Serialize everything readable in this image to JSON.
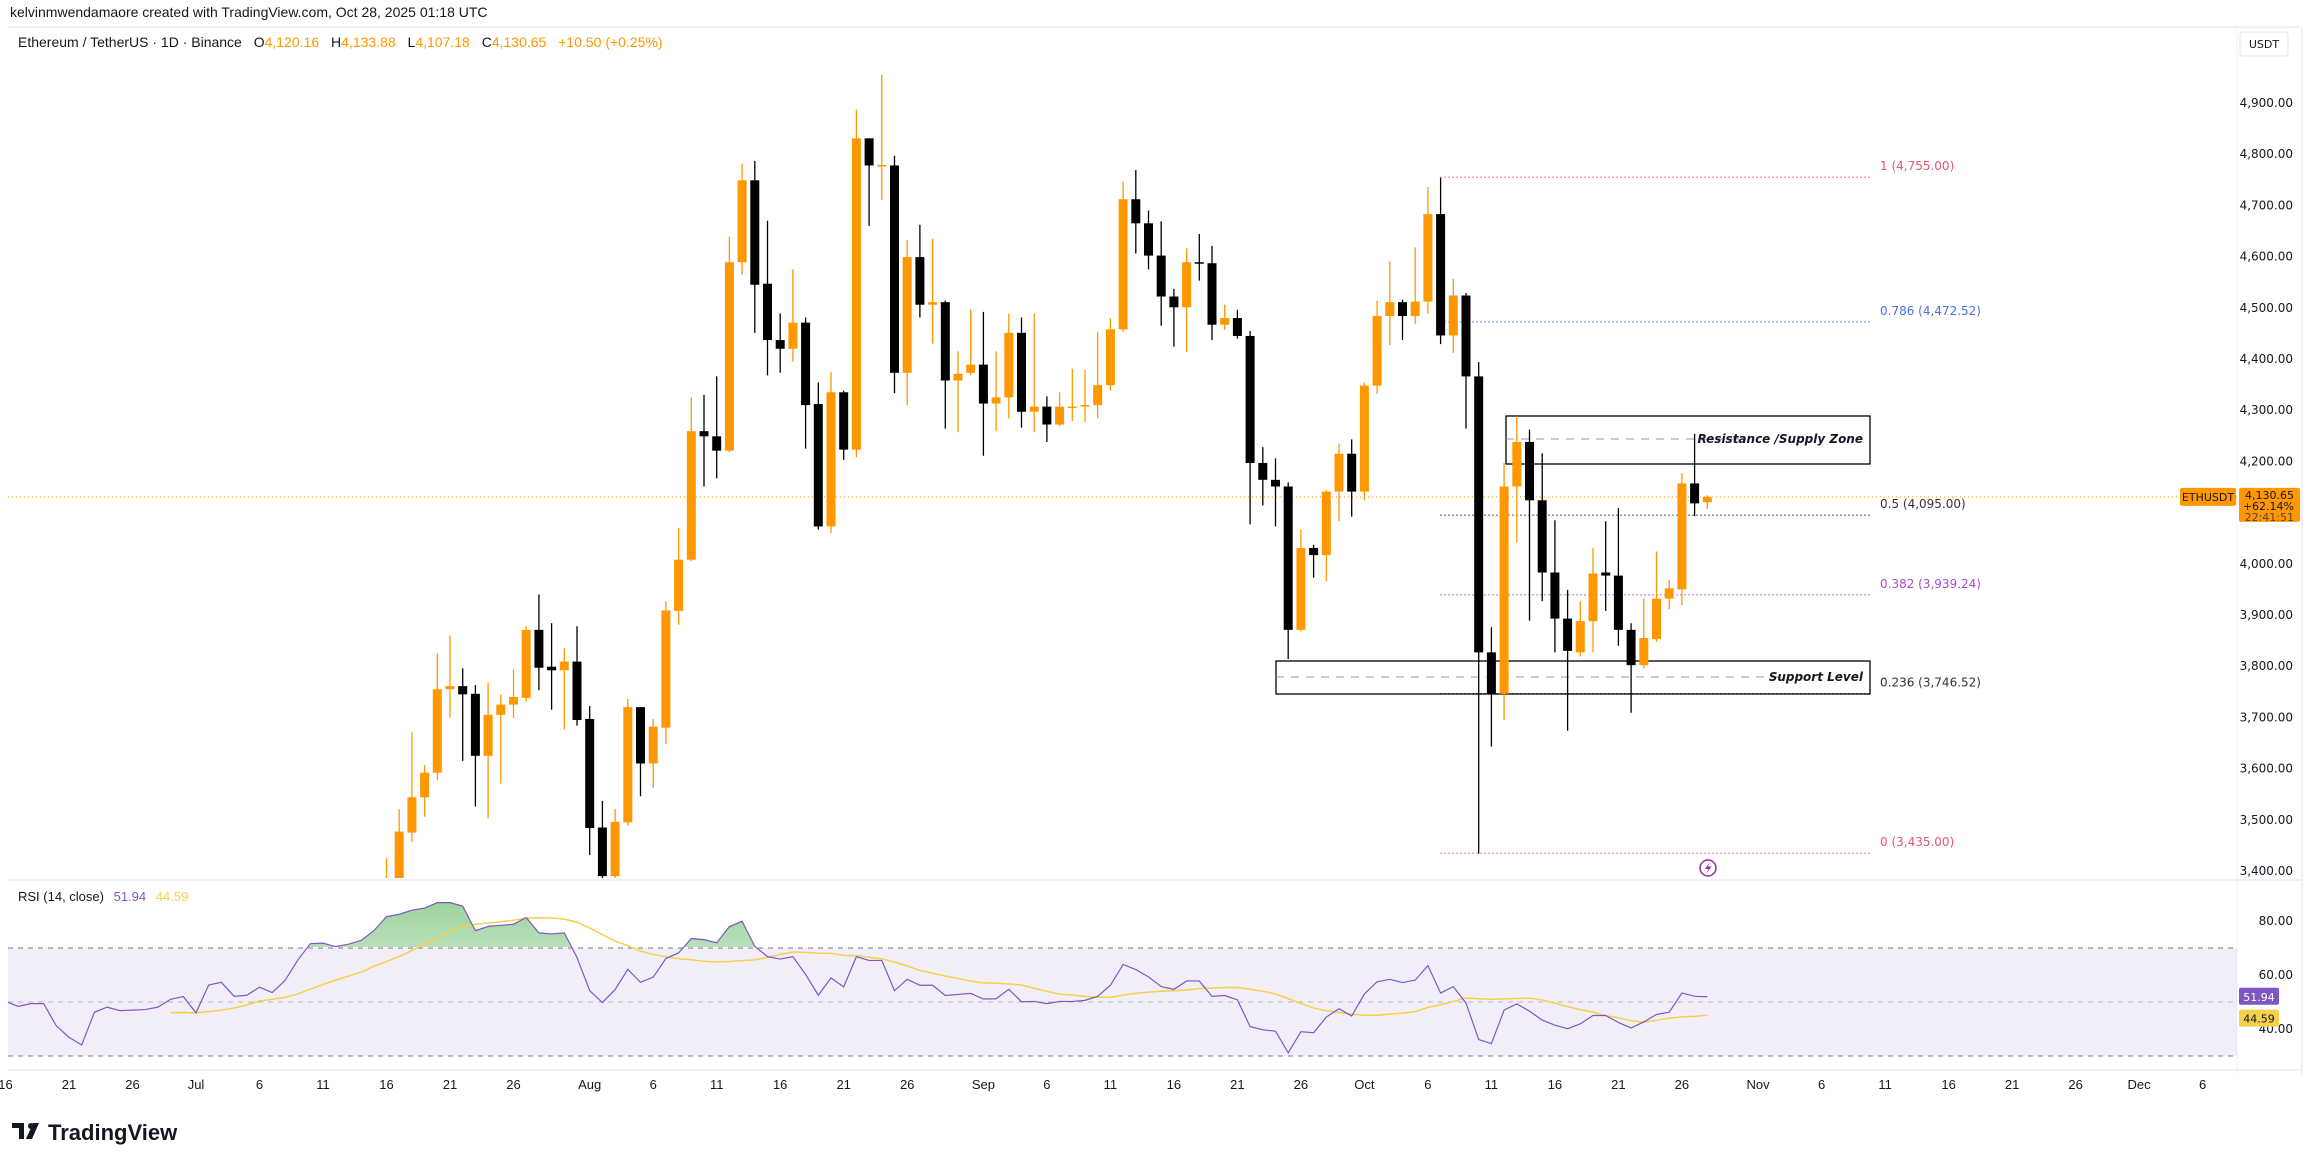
{
  "header": {
    "attribution": "kelvinmwendamaore created with TradingView.com, Oct 28, 2025 01:18 UTC",
    "symbol_title": "Ethereum / TetherUS · 1D · Binance",
    "o_label": "O",
    "o_value": "4,120.16",
    "h_label": "H",
    "h_value": "4,133.88",
    "l_label": "L",
    "l_value": "4,107.18",
    "c_label": "C",
    "c_value": "4,130.65",
    "change": "+10.50 (+0.25%)"
  },
  "currency_button": "USDT",
  "last_price": {
    "symbol": "ETHUSDT",
    "price": "4,130.65",
    "price_value": 4130.65,
    "change_pct": "+62.14%",
    "countdown": "22:41:51"
  },
  "annotations": {
    "resistance_label": "Resistance /Supply Zone",
    "support_label": "Support Level"
  },
  "rsi_legend": {
    "title": "RSI (14, close)",
    "rsi_value": "51.94",
    "ma_value": "44.59"
  },
  "logo": "TradingView",
  "colors": {
    "up": "#FF9800",
    "down": "#000000",
    "rsi": "#7E57C2",
    "rsi_ma": "#F5D04A",
    "price_line": "#FF9800"
  },
  "chart_data": [
    {
      "type": "candlestick",
      "title": "Ethereum / TetherUS · 1D · Binance",
      "ylabel": "USDT",
      "ylim": [
        3386,
        4948
      ],
      "y_ticks": [
        "4,900.00",
        "4,800.00",
        "4,700.00",
        "4,600.00",
        "4,500.00",
        "4,400.00",
        "4,300.00",
        "4,200.00",
        "4,000.00",
        "3,900.00",
        "3,800.00",
        "3,700.00",
        "3,600.00",
        "3,500.00",
        "3,400.00"
      ],
      "x_ticks": [
        {
          "label": "16",
          "date": "2025-06-16"
        },
        {
          "label": "21",
          "date": "2025-06-21"
        },
        {
          "label": "26",
          "date": "2025-06-26"
        },
        {
          "label": "Jul",
          "date": "2025-07-01"
        },
        {
          "label": "6",
          "date": "2025-07-06"
        },
        {
          "label": "11",
          "date": "2025-07-11"
        },
        {
          "label": "16",
          "date": "2025-07-16"
        },
        {
          "label": "21",
          "date": "2025-07-21"
        },
        {
          "label": "26",
          "date": "2025-07-26"
        },
        {
          "label": "Aug",
          "date": "2025-08-01"
        },
        {
          "label": "6",
          "date": "2025-08-06"
        },
        {
          "label": "11",
          "date": "2025-08-11"
        },
        {
          "label": "16",
          "date": "2025-08-16"
        },
        {
          "label": "21",
          "date": "2025-08-21"
        },
        {
          "label": "26",
          "date": "2025-08-26"
        },
        {
          "label": "Sep",
          "date": "2025-09-01"
        },
        {
          "label": "6",
          "date": "2025-09-06"
        },
        {
          "label": "11",
          "date": "2025-09-11"
        },
        {
          "label": "16",
          "date": "2025-09-16"
        },
        {
          "label": "21",
          "date": "2025-09-21"
        },
        {
          "label": "26",
          "date": "2025-09-26"
        },
        {
          "label": "Oct",
          "date": "2025-10-01"
        },
        {
          "label": "6",
          "date": "2025-10-06"
        },
        {
          "label": "11",
          "date": "2025-10-11"
        },
        {
          "label": "16",
          "date": "2025-10-16"
        },
        {
          "label": "21",
          "date": "2025-10-21"
        },
        {
          "label": "26",
          "date": "2025-10-26"
        },
        {
          "label": "Nov",
          "date": "2025-11-01"
        },
        {
          "label": "6",
          "date": "2025-11-06"
        },
        {
          "label": "11",
          "date": "2025-11-11"
        },
        {
          "label": "16",
          "date": "2025-11-16"
        },
        {
          "label": "21",
          "date": "2025-11-21"
        },
        {
          "label": "26",
          "date": "2025-11-26"
        },
        {
          "label": "Dec",
          "date": "2025-12-01"
        },
        {
          "label": "6",
          "date": "2025-12-06"
        }
      ],
      "start_date": "2025-07-16",
      "ohlc_fields": [
        "open",
        "high",
        "low",
        "close"
      ],
      "candles": [
        [
          3143,
          3425,
          3130,
          3370
        ],
        [
          3380,
          3521,
          3360,
          3477
        ],
        [
          3475,
          3671,
          3457,
          3544
        ],
        [
          3544,
          3607,
          3506,
          3592
        ],
        [
          3592,
          3825,
          3577,
          3755
        ],
        [
          3755,
          3860,
          3700,
          3761
        ],
        [
          3761,
          3796,
          3615,
          3745
        ],
        [
          3746,
          3763,
          3526,
          3625
        ],
        [
          3625,
          3768,
          3503,
          3705
        ],
        [
          3705,
          3745,
          3571,
          3725
        ],
        [
          3725,
          3794,
          3699,
          3740
        ],
        [
          3738,
          3878,
          3731,
          3871
        ],
        [
          3871,
          3940,
          3753,
          3797
        ],
        [
          3799,
          3884,
          3715,
          3792
        ],
        [
          3792,
          3835,
          3676,
          3809
        ],
        [
          3809,
          3878,
          3684,
          3695
        ],
        [
          3697,
          3722,
          3431,
          3484
        ],
        [
          3485,
          3537,
          3382,
          3390
        ],
        [
          3390,
          3521,
          3370,
          3496
        ],
        [
          3495,
          3736,
          3489,
          3720
        ],
        [
          3720,
          3720,
          3546,
          3610
        ],
        [
          3610,
          3697,
          3562,
          3682
        ],
        [
          3680,
          3927,
          3648,
          3909
        ],
        [
          3908,
          4070,
          3881,
          4008
        ],
        [
          4008,
          4325,
          4005,
          4259
        ],
        [
          4259,
          4330,
          4151,
          4249
        ],
        [
          4249,
          4366,
          4167,
          4221
        ],
        [
          4221,
          4639,
          4218,
          4589
        ],
        [
          4589,
          4782,
          4565,
          4749
        ],
        [
          4749,
          4787,
          4451,
          4545
        ],
        [
          4547,
          4670,
          4368,
          4437
        ],
        [
          4437,
          4489,
          4373,
          4420
        ],
        [
          4420,
          4575,
          4395,
          4471
        ],
        [
          4471,
          4481,
          4225,
          4310
        ],
        [
          4312,
          4354,
          4067,
          4073
        ],
        [
          4073,
          4374,
          4060,
          4335
        ],
        [
          4335,
          4338,
          4203,
          4223
        ],
        [
          4223,
          4887,
          4208,
          4831
        ],
        [
          4831,
          4831,
          4660,
          4778
        ],
        [
          4776,
          4955,
          4711,
          4779
        ],
        [
          4778,
          4797,
          4333,
          4373
        ],
        [
          4373,
          4632,
          4310,
          4599
        ],
        [
          4599,
          4662,
          4481,
          4506
        ],
        [
          4506,
          4635,
          4430,
          4511
        ],
        [
          4511,
          4514,
          4264,
          4358
        ],
        [
          4358,
          4415,
          4257,
          4371
        ],
        [
          4373,
          4497,
          4368,
          4389
        ],
        [
          4389,
          4492,
          4211,
          4313
        ],
        [
          4313,
          4415,
          4259,
          4325
        ],
        [
          4325,
          4489,
          4284,
          4451
        ],
        [
          4451,
          4481,
          4266,
          4297
        ],
        [
          4297,
          4489,
          4257,
          4307
        ],
        [
          4307,
          4327,
          4238,
          4272
        ],
        [
          4272,
          4335,
          4269,
          4307
        ],
        [
          4305,
          4381,
          4279,
          4307
        ],
        [
          4307,
          4379,
          4277,
          4310
        ],
        [
          4310,
          4453,
          4284,
          4349
        ],
        [
          4349,
          4480,
          4338,
          4458
        ],
        [
          4458,
          4747,
          4453,
          4712
        ],
        [
          4712,
          4769,
          4606,
          4665
        ],
        [
          4665,
          4690,
          4575,
          4602
        ],
        [
          4602,
          4669,
          4465,
          4522
        ],
        [
          4522,
          4537,
          4424,
          4501
        ],
        [
          4501,
          4616,
          4414,
          4589
        ],
        [
          4589,
          4644,
          4553,
          4587
        ],
        [
          4587,
          4621,
          4437,
          4467
        ],
        [
          4467,
          4506,
          4457,
          4480
        ],
        [
          4480,
          4496,
          4440,
          4445
        ],
        [
          4445,
          4455,
          4077,
          4197
        ],
        [
          4197,
          4228,
          4114,
          4164
        ],
        [
          4164,
          4206,
          4073,
          4151
        ],
        [
          4151,
          4159,
          3814,
          3871
        ],
        [
          3871,
          4067,
          3868,
          4031
        ],
        [
          4031,
          4037,
          3973,
          4017
        ],
        [
          4017,
          4144,
          3966,
          4141
        ],
        [
          4141,
          4235,
          4083,
          4215
        ],
        [
          4215,
          4243,
          4092,
          4141
        ],
        [
          4141,
          4354,
          4124,
          4348
        ],
        [
          4348,
          4514,
          4332,
          4484
        ],
        [
          4484,
          4591,
          4427,
          4511
        ],
        [
          4511,
          4516,
          4437,
          4484
        ],
        [
          4484,
          4618,
          4468,
          4512
        ],
        [
          4512,
          4736,
          4489,
          4683
        ],
        [
          4683,
          4754,
          4429,
          4446
        ],
        [
          4446,
          4557,
          4412,
          4524
        ],
        [
          4524,
          4529,
          4264,
          4366
        ],
        [
          4366,
          4394,
          3434,
          3827
        ],
        [
          3827,
          3876,
          3643,
          3746
        ],
        [
          3746,
          4197,
          3695,
          4151
        ],
        [
          4151,
          4289,
          4042,
          4238
        ],
        [
          4238,
          4262,
          3889,
          4124
        ],
        [
          4124,
          4216,
          3927,
          3983
        ],
        [
          3983,
          4085,
          3827,
          3893
        ],
        [
          3893,
          3949,
          3674,
          3830
        ],
        [
          3827,
          3927,
          3819,
          3888
        ],
        [
          3888,
          4031,
          3827,
          3981
        ],
        [
          3983,
          4083,
          3908,
          3977
        ],
        [
          3977,
          4109,
          3840,
          3871
        ],
        [
          3871,
          3884,
          3709,
          3802
        ],
        [
          3802,
          3932,
          3796,
          3855
        ],
        [
          3853,
          4024,
          3847,
          3932
        ],
        [
          3932,
          3968,
          3911,
          3952
        ],
        [
          3950,
          4177,
          3919,
          4157
        ],
        [
          4157,
          4254,
          4093,
          4118
        ],
        [
          4120.16,
          4133.88,
          4107.18,
          4130.65
        ]
      ],
      "fibonacci": [
        {
          "ratio": "1",
          "price": 4755.0,
          "label": "1 (4,755.00)",
          "color": "#E5566F"
        },
        {
          "ratio": "0.786",
          "price": 4472.52,
          "label": "0.786 (4,472.52)",
          "color": "#4A6FE3"
        },
        {
          "ratio": "0.5",
          "price": 4095.0,
          "label": "0.5 (4,095.00)",
          "color": "#333333"
        },
        {
          "ratio": "0.382",
          "price": 3939.24,
          "label": "0.382 (3,939.24)",
          "color": "#A24FD1"
        },
        {
          "ratio": "0.236",
          "price": 3746.52,
          "label": "0.236 (3,746.52)",
          "color": "#333333"
        },
        {
          "ratio": "0",
          "price": 3435.0,
          "label": "0 (3,435.00)",
          "color": "#E5566F"
        }
      ]
    },
    {
      "type": "line",
      "title": "RSI (14, close)",
      "ylim": [
        22,
        92
      ],
      "y_ticks": [
        "80.00",
        "60.00",
        "40.00"
      ],
      "bands": {
        "upper": 70,
        "middle": 50,
        "lower": 30
      },
      "start_date": "2025-06-16",
      "series": [
        {
          "name": "RSI",
          "values": [
            50.2,
            48.4,
            49.4,
            49.4,
            41.2,
            36.9,
            34.1,
            46.2,
            48.1,
            46.8,
            47.0,
            47.2,
            48.1,
            51.0,
            52.0,
            46.0,
            56.3,
            57.3,
            52.1,
            52.5,
            55.5,
            53.5,
            57.9,
            65.4,
            71.6,
            71.8,
            70.5,
            71.4,
            72.8,
            76.4,
            81.6,
            82.5,
            84.0,
            84.8,
            86.8,
            86.8,
            85.5,
            76.4,
            78.0,
            78.4,
            78.8,
            81.3,
            75.6,
            75.2,
            75.6,
            66.5,
            54.2,
            49.8,
            54.6,
            62.1,
            57.3,
            59.2,
            66.1,
            68.2,
            73.5,
            73.1,
            71.9,
            77.9,
            79.9,
            70.6,
            66.8,
            65.9,
            66.8,
            60.2,
            52.5,
            58.9,
            55.6,
            66.8,
            65.4,
            65.4,
            54.2,
            58.4,
            56.2,
            56.2,
            52.4,
            52.8,
            53.2,
            51.1,
            51.2,
            54.7,
            50.1,
            50.2,
            49.4,
            50.2,
            50.2,
            50.6,
            52.1,
            56.2,
            63.9,
            62.0,
            59.3,
            55.7,
            54.7,
            57.8,
            57.8,
            52.1,
            52.4,
            50.8,
            40.9,
            39.7,
            39.2,
            31.2,
            39.0,
            38.6,
            44.4,
            47.5,
            44.8,
            53.0,
            57.5,
            58.4,
            57.2,
            58.1,
            63.5,
            53.3,
            55.7,
            49.6,
            36.1,
            34.6,
            47.0,
            49.3,
            46.6,
            43.3,
            41.4,
            40.1,
            41.9,
            45.0,
            45.0,
            42.4,
            40.4,
            42.6,
            45.4,
            46.2,
            53.3,
            52.1,
            51.94
          ]
        },
        {
          "name": "RSI-based MA (SMA 14)",
          "values": "computed"
        }
      ]
    }
  ]
}
